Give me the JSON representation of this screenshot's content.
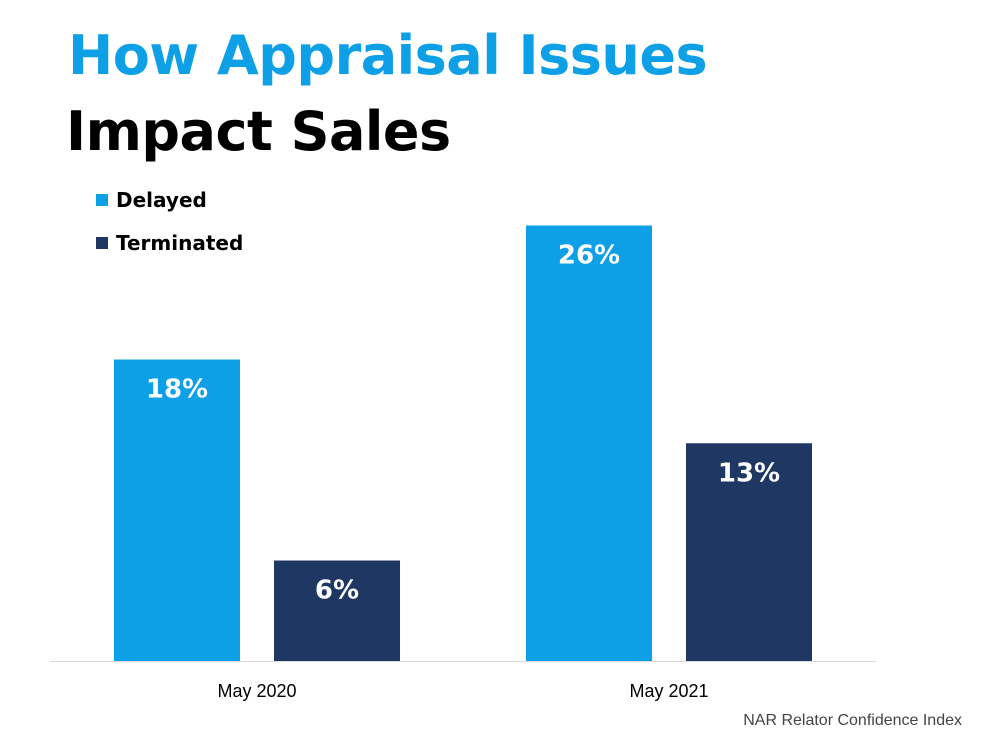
{
  "title_line1": "How Appraisal Issues",
  "title_line2": "Impact Sales",
  "source": "NAR Relator Confidence Index",
  "colors": {
    "delayed": "#0ea0e6",
    "terminated": "#1e3763",
    "title_accent": "#0ea0e6"
  },
  "chart_data": {
    "type": "bar",
    "categories": [
      "May 2020",
      "May 2021"
    ],
    "series": [
      {
        "name": "Delayed",
        "values": [
          18,
          26
        ],
        "labels": [
          "18%",
          "26%"
        ]
      },
      {
        "name": "Terminated",
        "values": [
          6,
          13
        ],
        "labels": [
          "6%",
          "13%"
        ]
      }
    ],
    "ylim": [
      0,
      30
    ],
    "grid": false,
    "legend_position": "top-left",
    "xlabel": "",
    "ylabel": ""
  }
}
